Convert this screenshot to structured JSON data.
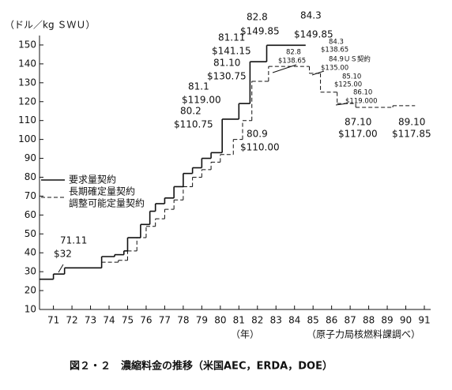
{
  "chart_data": {
    "type": "step",
    "y_axis_label": "（ドル／kg ＳＷＵ）",
    "x_axis_label": "（年）",
    "source": "（原子力局核燃料課調べ）",
    "caption": "図２・２　濃縮料金の推移（米国AEC，ERDA，DOE）",
    "xlim": [
      70.25,
      91
    ],
    "ylim": [
      10,
      155
    ],
    "xticks": [
      71,
      72,
      73,
      74,
      75,
      76,
      77,
      78,
      79,
      80,
      81,
      82,
      83,
      84,
      85,
      86,
      87,
      88,
      89,
      90,
      91
    ],
    "yticks": [
      10,
      20,
      30,
      40,
      50,
      60,
      70,
      80,
      90,
      100,
      110,
      120,
      130,
      140,
      150
    ],
    "series": [
      {
        "name": "要求量契約",
        "style": "solid",
        "color": "#111111",
        "x": [
          70.25,
          71.0,
          71.6,
          73.6,
          74.3,
          74.8,
          75.0,
          75.7,
          76.2,
          76.5,
          77.0,
          77.5,
          78.0,
          78.5,
          79.0,
          79.5,
          80.1,
          81.0,
          81.6,
          82.5,
          84.6
        ],
        "values": [
          26,
          28.75,
          32,
          38,
          39,
          41,
          48,
          55,
          62,
          66,
          69,
          75,
          82,
          85,
          90,
          93,
          110.75,
          119,
          141.15,
          149.85,
          null
        ]
      },
      {
        "name": "長期確定量契約",
        "name_line2": "調整可能定量契約",
        "style": "dashed",
        "color": "#111111",
        "x": [
          73.6,
          74.5,
          75.0,
          75.5,
          76.0,
          76.5,
          77.0,
          77.5,
          78.0,
          78.5,
          79.0,
          79.5,
          80.0,
          80.7,
          81.2,
          81.7,
          82.6,
          84.8,
          85.4,
          86.3,
          87.3,
          89.3,
          90.5
        ],
        "values": [
          35,
          36,
          41,
          48,
          54,
          58,
          63,
          68,
          75,
          80,
          84,
          88,
          92,
          100,
          110,
          130.75,
          138.65,
          135,
          125,
          119,
          117,
          117.85,
          null
        ]
      }
    ],
    "annotations": [
      [
        "71.11",
        "$32"
      ],
      [
        "80.2",
        "$110.75"
      ],
      [
        "81.1",
        "$119.00"
      ],
      [
        "81.10",
        "$130.75"
      ],
      [
        "81.11",
        "$141.15"
      ],
      [
        "82.8",
        "$149.85"
      ],
      [
        "84.3",
        "$149.85"
      ],
      [
        "80.9",
        "$110.00"
      ],
      [
        "82.8",
        "$138.65"
      ],
      [
        "84.3",
        "$138.65"
      ],
      [
        "84.9ＵＳ契約",
        "$135.00"
      ],
      [
        "85.10",
        "$125.00"
      ],
      [
        "86.10",
        "$119.000"
      ],
      [
        "87.10",
        "$117.00"
      ],
      [
        "89.10",
        "$117.85"
      ]
    ]
  }
}
